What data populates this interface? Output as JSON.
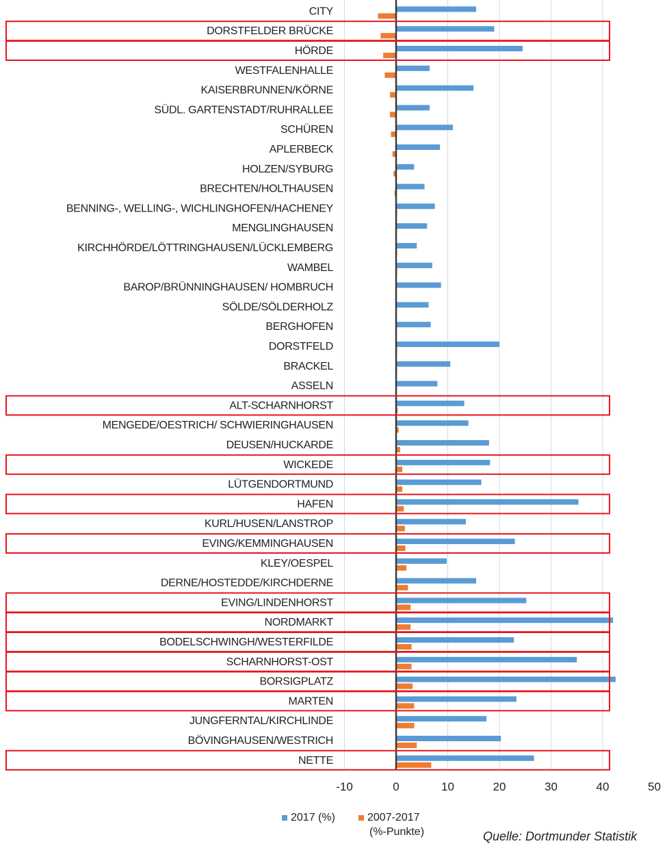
{
  "chart_data": {
    "type": "bar",
    "orientation": "horizontal",
    "categories": [
      "CITY",
      "DORSTFELDER BRÜCKE",
      "HÖRDE",
      "WESTFALENHALLE",
      "KAISERBRUNNEN/KÖRNE",
      "SÜDL. GARTENSTADT/RUHRALLEE",
      "SCHÜREN",
      "APLERBECK",
      "HOLZEN/SYBURG",
      "BRECHTEN/HOLTHAUSEN",
      "BENNING-, WELLING-, WICHLINGHOFEN/HACHENEY",
      "MENGLINGHAUSEN",
      "KIRCHHÖRDE/LÖTTRINGHAUSEN/LÜCKLEMBERG",
      "WAMBEL",
      "BAROP/BRÜNNINGHAUSEN/ HOMBRUCH",
      "SÖLDE/SÖLDERHOLZ",
      "BERGHOFEN",
      "DORSTFELD",
      "BRACKEL",
      "ASSELN",
      "ALT-SCHARNHORST",
      "MENGEDE/OESTRICH/ SCHWIERINGHAUSEN",
      "DEUSEN/HUCKARDE",
      "WICKEDE",
      "LÜTGENDORTMUND",
      "HAFEN",
      "KURL/HUSEN/LANSTROP",
      "EVING/KEMMINGHAUSEN",
      "KLEY/OESPEL",
      "DERNE/HOSTEDDE/KIRCHDERNE",
      "EVING/LINDENHORST",
      "NORDMARKT",
      "BODELSCHWINGH/WESTERFILDE",
      "SCHARNHORST-OST",
      "BORSIGPLATZ",
      "MARTEN",
      "JUNGFERNTAL/KIRCHLINDE",
      "BÖVINGHAUSEN/WESTRICH",
      "NETTE"
    ],
    "series": [
      {
        "name": "2017 (%)",
        "color": "#5b9bd5",
        "values": [
          15.5,
          19.0,
          24.5,
          6.5,
          15.0,
          6.5,
          11.0,
          8.5,
          3.5,
          5.5,
          7.5,
          6.0,
          4.0,
          7.0,
          8.7,
          6.3,
          6.7,
          20.0,
          10.5,
          8.0,
          13.2,
          14.0,
          18.0,
          18.2,
          16.5,
          35.3,
          13.5,
          23.0,
          9.8,
          15.5,
          25.2,
          42.0,
          22.8,
          35.0,
          42.5,
          23.3,
          17.5,
          20.3,
          26.7
        ]
      },
      {
        "name": "2007-2017 (%-Punkte)",
        "color": "#ed7d31",
        "values": [
          -3.5,
          -3.0,
          -2.5,
          -2.2,
          -1.2,
          -1.2,
          -1.0,
          -0.7,
          -0.5,
          -0.3,
          0.2,
          0.1,
          0.2,
          0.2,
          0.1,
          0.1,
          0.1,
          0.2,
          0.2,
          0.1,
          0.3,
          0.5,
          0.8,
          1.2,
          1.2,
          1.5,
          1.7,
          1.8,
          2.0,
          2.3,
          2.8,
          2.8,
          3.0,
          3.0,
          3.2,
          3.5,
          3.5,
          4.0,
          6.8
        ]
      }
    ],
    "xlim": [
      -10,
      50
    ],
    "x_ticks": [
      "-10",
      "0",
      "10",
      "20",
      "30",
      "40",
      "50"
    ],
    "grid": true,
    "legend_position": "bottom",
    "highlighted_categories": [
      "DORSTFELDER BRÜCKE",
      "HÖRDE",
      "ALT-SCHARNHORST",
      "WICKEDE",
      "HAFEN",
      "EVING/KEMMINGHAUSEN",
      "EVING/LINDENHORST",
      "NORDMARKT",
      "BODELSCHWINGH/WESTERFILDE",
      "SCHARNHORST-OST",
      "BORSIGPLATZ",
      "MARTEN",
      "NETTE"
    ],
    "highlight_color": "#e8141b"
  },
  "legend": {
    "item1": "2017 (%)",
    "item2_line1": "2007-2017",
    "item2_line2": "(%-Punkte)"
  },
  "source": "Quelle: Dortmunder Statistik"
}
